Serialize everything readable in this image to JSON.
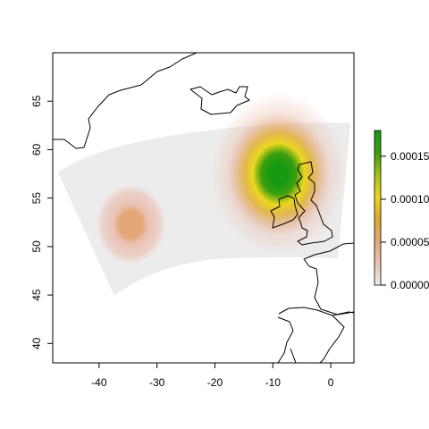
{
  "map": {
    "xaxis": {
      "range": [
        -48,
        4
      ],
      "ticks": [
        -40,
        -30,
        -20,
        -10,
        0
      ],
      "tick_labels": [
        "-40",
        "-30",
        "-20",
        "-10",
        "0"
      ]
    },
    "yaxis": {
      "range": [
        38,
        70
      ],
      "ticks": [
        40,
        45,
        50,
        55,
        60,
        65
      ],
      "tick_labels": [
        "40",
        "45",
        "50",
        "55",
        "60",
        "65"
      ]
    },
    "domain_color": "#ececec",
    "land_stroke": "#000000",
    "blobs": [
      {
        "lon": -34.5,
        "lat": 52.3,
        "rx_deg": 8,
        "ry_deg": 5.5,
        "peak": 5.5e-05
      },
      {
        "lon": -9,
        "lat": 57.5,
        "rx_deg": 12,
        "ry_deg": 8.5,
        "peak": 0.00018
      }
    ]
  },
  "legend": {
    "range": [
      0,
      0.00018
    ],
    "ticks": [
      0,
      5e-05,
      0.0001,
      0.00015
    ],
    "tick_labels": [
      "0.00000",
      "0.00005",
      "0.00010",
      "0.00015"
    ],
    "colors": [
      "#ececec",
      "#e9c2b3",
      "#e4a777",
      "#dfaa2a",
      "#ecd71f",
      "#a4c212",
      "#3c9f0e",
      "#169a12"
    ]
  }
}
